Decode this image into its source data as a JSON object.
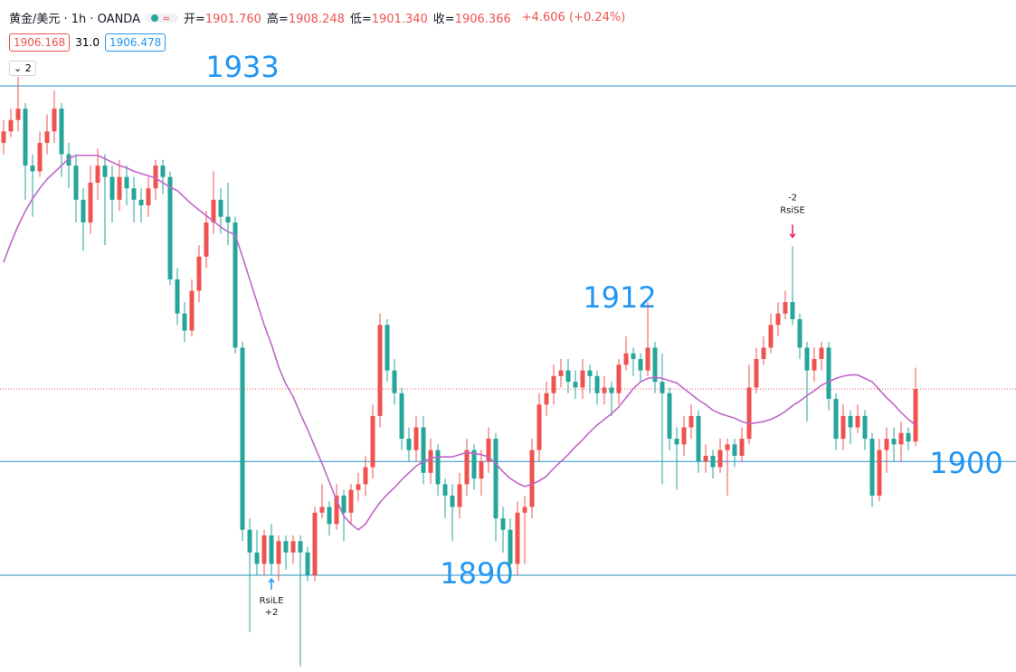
{
  "header": {
    "symbol": "黄金/美元 · 1h · OANDA",
    "quote": [
      {
        "label": "开=",
        "value": "1901.760"
      },
      {
        "label": "高=",
        "value": "1908.248"
      },
      {
        "label": "低=",
        "value": "1901.340"
      },
      {
        "label": "收=",
        "value": "1906.366"
      }
    ],
    "change": "+4.606 (+0.24%)",
    "sell": "1906.168",
    "spread": "31.0",
    "buy": "1906.478",
    "collapse": "2"
  },
  "chart_data": {
    "type": "candlestick",
    "ylim": [
      1881.5,
      1940.55
    ],
    "up_color": "#ef5350",
    "down_color": "#26a69a",
    "ma_color": "#c066c9",
    "level_color": "#2a8fc7",
    "label_color": "#2196f3",
    "open": [
      1928,
      1929,
      1930,
      1931,
      1926,
      1925.5,
      1928,
      1929,
      1931,
      1927,
      1926,
      1923,
      1921,
      1924.5,
      1926,
      1925,
      1923,
      1925,
      1924,
      1923,
      1922.5,
      1924,
      1926,
      1925,
      1916,
      1913,
      1911.5,
      1915,
      1918,
      1921,
      1923,
      1921.5,
      1921,
      1910,
      1894,
      1892,
      1891,
      1893.5,
      1891,
      1893,
      1892,
      1893,
      1892,
      1890,
      1895.5,
      1896,
      1894.5,
      1897,
      1895.5,
      1897.5,
      1898,
      1899.5,
      1904,
      1912,
      1908,
      1906,
      1902,
      1901,
      1903,
      1899,
      1901,
      1898,
      1897,
      1896,
      1898,
      1901,
      1898.5,
      1900,
      1902,
      1895,
      1894,
      1891,
      1895.5,
      1896,
      1901,
      1905,
      1906,
      1907.5,
      1908,
      1907,
      1906.5,
      1908,
      1907.5,
      1906,
      1906.5,
      1906,
      1908.5,
      1909.5,
      1909,
      1908,
      1910,
      1907,
      1906,
      1902,
      1901.5,
      1903,
      1904,
      1900,
      1900.5,
      1899.5,
      1901,
      1901.5,
      1900.5,
      1902,
      1906.5,
      1909,
      1910,
      1912,
      1913,
      1914,
      1912.5,
      1910,
      1908,
      1909,
      1910,
      1905.5,
      1902,
      1904,
      1903,
      1904,
      1902,
      1897,
      1901,
      1902,
      1901.5,
      1902.5,
      1901.76
    ],
    "high": [
      1930,
      1931,
      1933.8,
      1931.5,
      1927,
      1929,
      1930.5,
      1932.6,
      1931.5,
      1928,
      1927,
      1924,
      1926,
      1927.5,
      1927,
      1926,
      1926.5,
      1926,
      1925,
      1924,
      1925,
      1926.5,
      1926.5,
      1925.5,
      1917,
      1914,
      1916,
      1919,
      1922,
      1925.5,
      1924,
      1924.5,
      1921.5,
      1910.5,
      1895,
      1894,
      1894,
      1894.5,
      1893.5,
      1893.5,
      1893.5,
      1893.5,
      1892.5,
      1896,
      1898,
      1896.5,
      1898,
      1897.5,
      1898,
      1899,
      1900.5,
      1905,
      1913,
      1912.5,
      1909,
      1906.5,
      1903,
      1904,
      1904,
      1902,
      1901.5,
      1898.5,
      1898,
      1899,
      1902,
      1901.5,
      1901,
      1903,
      1902.5,
      1896,
      1895,
      1896.5,
      1897,
      1902,
      1906,
      1907,
      1908.5,
      1909,
      1909,
      1908,
      1909,
      1908.5,
      1908,
      1907.5,
      1907,
      1909,
      1911,
      1910,
      1909.5,
      1914,
      1910.5,
      1909.5,
      1906.5,
      1903,
      1904,
      1905,
      1904.5,
      1901.5,
      1901,
      1902,
      1902,
      1902,
      1903,
      1908.5,
      1910,
      1911,
      1913,
      1914,
      1915,
      1918.9,
      1913,
      1910.5,
      1910,
      1910.5,
      1910.5,
      1906,
      1905,
      1904.5,
      1905,
      1904.5,
      1902.5,
      1902,
      1903,
      1903,
      1903.5,
      1903,
      1908.248
    ],
    "low": [
      1927,
      1928.5,
      1929,
      1923,
      1921.5,
      1925,
      1927,
      1928,
      1925,
      1924,
      1921,
      1918.5,
      1920,
      1923,
      1919,
      1921,
      1922,
      1922.5,
      1921,
      1921,
      1921.5,
      1923,
      1923.5,
      1915.5,
      1912,
      1910.5,
      1911,
      1914,
      1917,
      1920,
      1920,
      1919,
      1909.5,
      1893,
      1885,
      1890,
      1890,
      1890,
      1889.5,
      1890.5,
      1891,
      1882,
      1889.5,
      1889.5,
      1895,
      1893.5,
      1894,
      1893,
      1894.5,
      1896.5,
      1897,
      1898.5,
      1903,
      1907,
      1905,
      1901,
      1900,
      1900,
      1898,
      1898,
      1897,
      1895,
      1893,
      1895,
      1897,
      1897.5,
      1897,
      1899,
      1893,
      1892,
      1889.5,
      1890,
      1891,
      1895,
      1900,
      1904,
      1905,
      1906.5,
      1906,
      1905.5,
      1905.5,
      1906,
      1905,
      1905,
      1904,
      1905,
      1908,
      1907.5,
      1907,
      1907.5,
      1906,
      1898,
      1901,
      1897.5,
      1900.5,
      1902,
      1899,
      1899,
      1898.5,
      1899,
      1897,
      1899.5,
      1900,
      1901.5,
      1906,
      1908.5,
      1909.5,
      1911,
      1912.5,
      1912,
      1909,
      1903.5,
      1907,
      1908,
      1904.5,
      1901,
      1901,
      1901.5,
      1902.5,
      1901,
      1896,
      1896.5,
      1899,
      1900,
      1900,
      1901,
      1901.34
    ],
    "close": [
      1929,
      1930,
      1931,
      1926,
      1925.5,
      1928,
      1929,
      1931,
      1927,
      1926,
      1923,
      1921,
      1924.5,
      1926,
      1925,
      1923,
      1925,
      1924,
      1923,
      1922.5,
      1924,
      1926,
      1925,
      1916,
      1913,
      1911.5,
      1915,
      1918,
      1921,
      1923,
      1921.5,
      1921,
      1910,
      1894,
      1892,
      1891,
      1893.5,
      1891,
      1893,
      1892,
      1893,
      1892,
      1890,
      1895.5,
      1896,
      1894.5,
      1897,
      1895.5,
      1897.5,
      1898,
      1899.5,
      1904,
      1912,
      1908,
      1906,
      1902,
      1901,
      1903,
      1899,
      1901,
      1898,
      1897,
      1896,
      1898,
      1901,
      1898.5,
      1900,
      1902,
      1895,
      1894,
      1891,
      1895.5,
      1896,
      1901,
      1905,
      1906,
      1907.5,
      1908,
      1907,
      1906.5,
      1908,
      1907.5,
      1906,
      1906.5,
      1906,
      1908.5,
      1909.5,
      1909,
      1908,
      1910,
      1907,
      1906,
      1902,
      1901.5,
      1903,
      1904,
      1900,
      1900.5,
      1899.5,
      1901,
      1901.5,
      1900.5,
      1902,
      1906.5,
      1909,
      1910,
      1912,
      1913,
      1914,
      1912.5,
      1910,
      1908,
      1909,
      1910,
      1905.5,
      1902,
      1904,
      1903,
      1904,
      1902,
      1897,
      1901,
      1902,
      1901.5,
      1902.5,
      1901.76,
      1906.366
    ],
    "ma": [
      1917.5,
      1919.2,
      1920.7,
      1922,
      1923.1,
      1924,
      1924.8,
      1925.4,
      1926,
      1926.6,
      1926.9,
      1926.9,
      1926.9,
      1926.9,
      1926.6,
      1926.3,
      1926,
      1925.8,
      1925.5,
      1925.3,
      1925.1,
      1924.9,
      1924.5,
      1924.1,
      1923.8,
      1923.2,
      1922.6,
      1922.1,
      1921.6,
      1921.1,
      1920.6,
      1920.2,
      1919.9,
      1918,
      1916,
      1914,
      1912,
      1910.3,
      1908.3,
      1906.8,
      1905.7,
      1904.2,
      1902.8,
      1901.3,
      1899.8,
      1898.2,
      1896.6,
      1895.2,
      1894.5,
      1894,
      1894.5,
      1895.5,
      1896.4,
      1897.1,
      1897.7,
      1898.4,
      1899,
      1899.6,
      1900,
      1900.3,
      1900.4,
      1900.4,
      1900.4,
      1900.6,
      1900.8,
      1900.7,
      1900.6,
      1900.4,
      1899.8,
      1899.1,
      1898.5,
      1898.1,
      1897.8,
      1898,
      1898.3,
      1898.7,
      1899.4,
      1900,
      1900.6,
      1901.3,
      1901.9,
      1902.6,
      1903.2,
      1903.7,
      1904.2,
      1904.8,
      1905.6,
      1906.4,
      1907,
      1907.3,
      1907.4,
      1907.3,
      1907.1,
      1906.9,
      1906.4,
      1905.9,
      1905.4,
      1905,
      1904.5,
      1904.2,
      1904,
      1903.8,
      1903.5,
      1903.3,
      1903.4,
      1903.5,
      1903.7,
      1904,
      1904.4,
      1904.9,
      1905.3,
      1905.8,
      1906.2,
      1906.7,
      1907,
      1907.3,
      1907.5,
      1907.6,
      1907.6,
      1907.3,
      1907,
      1906.3,
      1905.6,
      1905,
      1904.3,
      1903.7,
      1903.2
    ],
    "levels": [
      1933,
      1900,
      1890
    ],
    "annotations": [
      "1912"
    ],
    "signals": [
      {
        "name": "RsiLE",
        "qty": "+2"
      },
      {
        "name": "RsiSE",
        "qty": "-2"
      }
    ]
  }
}
